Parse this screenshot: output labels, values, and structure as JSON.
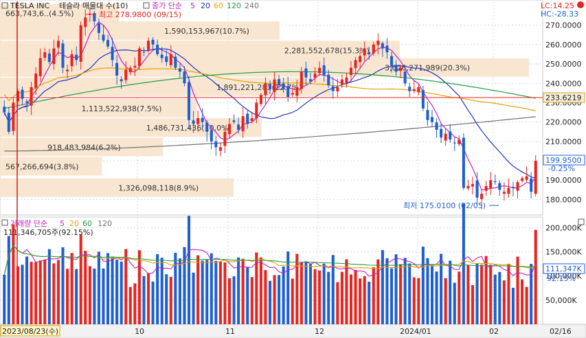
{
  "header": {
    "ticker": "TESLA INC",
    "chart_title": "테슬라 매물대 수(10)",
    "legend_price_prefix": "종가 단순",
    "legend_volume_prefix": "거래량 단순",
    "ma_periods": [
      "5",
      "20",
      "60",
      "120",
      "240"
    ],
    "volume_ma_periods": [
      "5",
      "20",
      "60",
      "120"
    ],
    "lc_label": "LC:14.25",
    "hc_label": "HC:-28.33"
  },
  "colors": {
    "up": "#e8241f",
    "down": "#1f5fd0",
    "ma5": "#c020c0",
    "ma20": "#2030c0",
    "ma60": "#e8a000",
    "ma120": "#20a040",
    "ma240": "#707070",
    "profile": "#f7e3cc"
  },
  "annotations": {
    "high_label": "최고 278.9800 (09/15)",
    "low_label": "최저 175.0100 (02/05)",
    "price_line_label": "233.6219",
    "last_price_label": "199.9500",
    "change_label": "-0.25%",
    "volume_top_label": "111,346,705주(92.15%)",
    "volume_last_label": "111,347K",
    "volume_pct_label": "92.15%"
  },
  "price_axis": [
    "270.0000",
    "260.0000",
    "250.0000",
    "240.0000",
    "230.0000",
    "220.0000",
    "210.0000",
    "200.0000",
    "190.0000",
    "180.0000"
  ],
  "volume_axis": [
    "200,000K",
    "150,000K",
    "100,000K",
    "50,000K"
  ],
  "x_axis": {
    "cursor_date": "2023/08/23(수)",
    "labels": [
      "10",
      "11",
      "12",
      "2024/01",
      "02",
      "02/16"
    ]
  },
  "chart_data": {
    "type": "candlestick",
    "ylim": [
      172,
      283
    ],
    "volume_ylim": [
      0,
      222000000
    ],
    "volume_profile": [
      {
        "price": 276.0,
        "label": "663,743,6..(4.5%)",
        "volume": 663743600
      },
      {
        "price": 267.0,
        "label": "1,590,153,967(10.7%)",
        "volume": 1590153967
      },
      {
        "price": 257.0,
        "label": "2,281,552,678(15.3%)",
        "volume": 2281552678
      },
      {
        "price": 248.0,
        "label": "3,026,271,989(20.3%)",
        "volume": 3026271989
      },
      {
        "price": 238.0,
        "label": "1,891,221,283(12.7%)",
        "volume": 1891221283
      },
      {
        "price": 227.0,
        "label": "1,113,522,938(7.5%)",
        "volume": 1113522938
      },
      {
        "price": 217.0,
        "label": "1,486,731,436(10.0%)",
        "volume": 1486731436
      },
      {
        "price": 207.0,
        "label": "918,483,984(6.2%)",
        "volume": 918483984
      },
      {
        "price": 197.0,
        "label": "567,266,694(3.8%)",
        "volume": 567266694
      },
      {
        "price": 186.0,
        "label": "1,326,098,118(8.9%)",
        "volume": 1326098118
      }
    ],
    "close": [
      225,
      215,
      230,
      236,
      232,
      230,
      238,
      245,
      253,
      256,
      251,
      258,
      262,
      248,
      247,
      255,
      252,
      270,
      274,
      276,
      272,
      266,
      262,
      259,
      252,
      244,
      241,
      247,
      248,
      249,
      258,
      256,
      262,
      260,
      255,
      253,
      251,
      255,
      248,
      246,
      240,
      221,
      219,
      222,
      220,
      215,
      210,
      207,
      207,
      215,
      219,
      220,
      216,
      223,
      219,
      222,
      230,
      234,
      240,
      237,
      242,
      239,
      237,
      233,
      235,
      238,
      246,
      243,
      241,
      245,
      248,
      244,
      239,
      236,
      238,
      242,
      243,
      248,
      252,
      254,
      258,
      255,
      260,
      262,
      258,
      256,
      249,
      246,
      248,
      240,
      236,
      237,
      238,
      227,
      221,
      220,
      216,
      212,
      214,
      211,
      209,
      211,
      186,
      187,
      188,
      181,
      183,
      187,
      190,
      189,
      185,
      184,
      186,
      186,
      189,
      191,
      192,
      184,
      200
    ]
  }
}
